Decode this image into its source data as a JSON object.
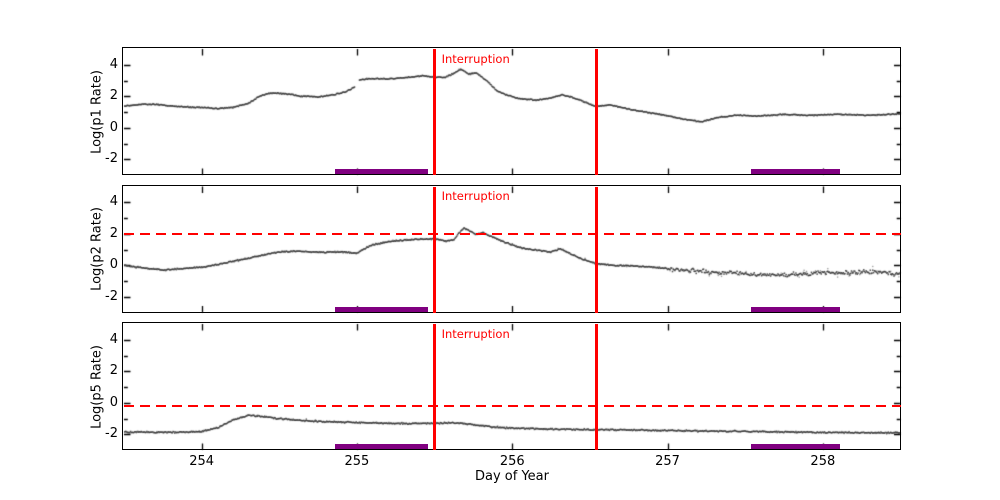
{
  "figure": {
    "background": "#ffffff"
  },
  "colors": {
    "accent_red": "#ff0000",
    "band_purple": "#800080",
    "data_gray": "#3a3a3a",
    "frame_black": "#000000"
  },
  "x_axis": {
    "label": "Day of Year",
    "min": 253.5,
    "max": 258.5,
    "tick_values": [
      254,
      255,
      256,
      257,
      258
    ],
    "tick_labels": [
      "254",
      "255",
      "256",
      "257",
      "258"
    ]
  },
  "y_axis": {
    "min": -3,
    "max": 5,
    "tick_values": [
      -2,
      0,
      2,
      4
    ],
    "tick_labels": [
      "-2",
      "0",
      "2",
      "4"
    ],
    "minor_tick_values": [
      -1,
      1,
      3
    ]
  },
  "annotations": {
    "interruption_label": "Interruption",
    "interruption_times": [
      255.5,
      256.54
    ]
  },
  "bands": [
    [
      254.86,
      255.46
    ],
    [
      257.54,
      258.11
    ]
  ],
  "chart_data": [
    {
      "type": "scatter",
      "name": "p1",
      "ylabel": "Log(p1 Rate)",
      "xlim": [
        253.5,
        258.5
      ],
      "ylim": [
        -3,
        5
      ],
      "grid": false,
      "legend": false,
      "threshold": null,
      "gaps": [
        [
          254.985,
          255.015
        ]
      ],
      "noise": [
        {
          "to": 258.5,
          "sigma": 0.04
        }
      ],
      "keypoints": [
        [
          253.5,
          1.38
        ],
        [
          253.62,
          1.5
        ],
        [
          253.72,
          1.48
        ],
        [
          253.85,
          1.35
        ],
        [
          254.0,
          1.28
        ],
        [
          254.1,
          1.22
        ],
        [
          254.2,
          1.3
        ],
        [
          254.3,
          1.55
        ],
        [
          254.38,
          2.05
        ],
        [
          254.45,
          2.2
        ],
        [
          254.55,
          2.15
        ],
        [
          254.65,
          2.0
        ],
        [
          254.75,
          1.95
        ],
        [
          254.85,
          2.1
        ],
        [
          254.93,
          2.3
        ],
        [
          254.985,
          2.6
        ],
        [
          255.015,
          3.05
        ],
        [
          255.1,
          3.12
        ],
        [
          255.2,
          3.1
        ],
        [
          255.3,
          3.18
        ],
        [
          255.42,
          3.3
        ],
        [
          255.5,
          3.22
        ],
        [
          255.57,
          3.2
        ],
        [
          255.62,
          3.45
        ],
        [
          255.67,
          3.72
        ],
        [
          255.72,
          3.4
        ],
        [
          255.77,
          3.48
        ],
        [
          255.84,
          2.95
        ],
        [
          255.9,
          2.35
        ],
        [
          255.97,
          2.05
        ],
        [
          256.05,
          1.85
        ],
        [
          256.15,
          1.75
        ],
        [
          256.25,
          1.9
        ],
        [
          256.32,
          2.1
        ],
        [
          256.38,
          1.95
        ],
        [
          256.45,
          1.7
        ],
        [
          256.54,
          1.35
        ],
        [
          256.62,
          1.45
        ],
        [
          256.7,
          1.3
        ],
        [
          256.8,
          1.1
        ],
        [
          256.95,
          0.85
        ],
        [
          257.1,
          0.55
        ],
        [
          257.22,
          0.38
        ],
        [
          257.32,
          0.65
        ],
        [
          257.45,
          0.8
        ],
        [
          257.6,
          0.75
        ],
        [
          257.75,
          0.85
        ],
        [
          257.9,
          0.8
        ],
        [
          258.1,
          0.85
        ],
        [
          258.3,
          0.8
        ],
        [
          258.5,
          0.88
        ]
      ]
    },
    {
      "type": "scatter",
      "name": "p2",
      "ylabel": "Log(p2 Rate)",
      "xlim": [
        253.5,
        258.5
      ],
      "ylim": [
        -3,
        5
      ],
      "grid": false,
      "legend": false,
      "threshold": 2.0,
      "gaps": [],
      "noise": [
        {
          "to": 257.0,
          "sigma": 0.05
        },
        {
          "to": 258.5,
          "sigma": 0.17
        }
      ],
      "keypoints": [
        [
          253.5,
          0.0
        ],
        [
          253.6,
          -0.15
        ],
        [
          253.75,
          -0.3
        ],
        [
          253.9,
          -0.2
        ],
        [
          254.05,
          -0.05
        ],
        [
          254.2,
          0.25
        ],
        [
          254.35,
          0.55
        ],
        [
          254.5,
          0.85
        ],
        [
          254.6,
          0.9
        ],
        [
          254.75,
          0.82
        ],
        [
          254.9,
          0.85
        ],
        [
          255.0,
          0.78
        ],
        [
          255.05,
          1.05
        ],
        [
          255.1,
          1.3
        ],
        [
          255.2,
          1.5
        ],
        [
          255.3,
          1.6
        ],
        [
          255.4,
          1.65
        ],
        [
          255.5,
          1.68
        ],
        [
          255.57,
          1.55
        ],
        [
          255.62,
          1.6
        ],
        [
          255.66,
          2.1
        ],
        [
          255.69,
          2.38
        ],
        [
          255.73,
          2.15
        ],
        [
          255.77,
          1.95
        ],
        [
          255.81,
          2.1
        ],
        [
          255.87,
          1.8
        ],
        [
          255.93,
          1.55
        ],
        [
          256.0,
          1.3
        ],
        [
          256.08,
          1.05
        ],
        [
          256.17,
          0.95
        ],
        [
          256.25,
          0.85
        ],
        [
          256.31,
          1.05
        ],
        [
          256.38,
          0.7
        ],
        [
          256.45,
          0.4
        ],
        [
          256.54,
          0.1
        ],
        [
          256.65,
          0.0
        ],
        [
          256.8,
          -0.05
        ],
        [
          256.95,
          -0.15
        ],
        [
          257.1,
          -0.3
        ],
        [
          257.3,
          -0.45
        ],
        [
          257.5,
          -0.55
        ],
        [
          257.7,
          -0.6
        ],
        [
          257.9,
          -0.52
        ],
        [
          258.1,
          -0.45
        ],
        [
          258.3,
          -0.42
        ],
        [
          258.5,
          -0.55
        ]
      ]
    },
    {
      "type": "scatter",
      "name": "p5",
      "ylabel": "Log(p5 Rate)",
      "xlim": [
        253.5,
        258.5
      ],
      "ylim": [
        -3,
        5
      ],
      "grid": false,
      "legend": false,
      "threshold": -0.2,
      "gaps": [],
      "noise": [
        {
          "to": 258.5,
          "sigma": 0.055
        }
      ],
      "keypoints": [
        [
          253.5,
          -1.85
        ],
        [
          253.7,
          -1.87
        ],
        [
          253.85,
          -1.88
        ],
        [
          254.0,
          -1.82
        ],
        [
          254.1,
          -1.6
        ],
        [
          254.2,
          -1.1
        ],
        [
          254.3,
          -0.8
        ],
        [
          254.4,
          -0.88
        ],
        [
          254.5,
          -1.0
        ],
        [
          254.62,
          -1.1
        ],
        [
          254.75,
          -1.18
        ],
        [
          254.9,
          -1.22
        ],
        [
          255.05,
          -1.27
        ],
        [
          255.2,
          -1.3
        ],
        [
          255.35,
          -1.32
        ],
        [
          255.5,
          -1.3
        ],
        [
          255.62,
          -1.27
        ],
        [
          255.72,
          -1.35
        ],
        [
          255.82,
          -1.48
        ],
        [
          255.95,
          -1.58
        ],
        [
          256.1,
          -1.63
        ],
        [
          256.3,
          -1.68
        ],
        [
          256.5,
          -1.7
        ],
        [
          256.7,
          -1.72
        ],
        [
          257.0,
          -1.76
        ],
        [
          257.3,
          -1.8
        ],
        [
          257.6,
          -1.83
        ],
        [
          257.9,
          -1.87
        ],
        [
          258.2,
          -1.9
        ],
        [
          258.5,
          -1.9
        ]
      ]
    }
  ]
}
